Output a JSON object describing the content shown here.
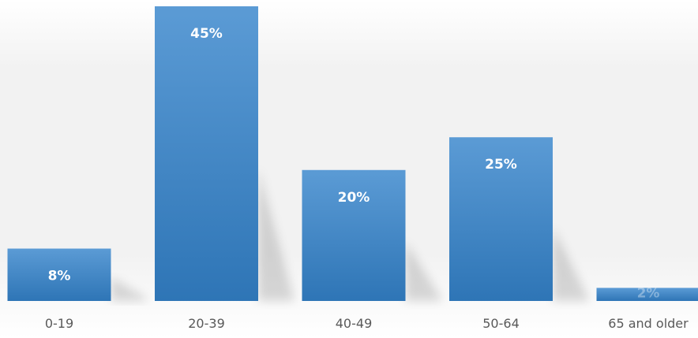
{
  "chart_data": {
    "type": "bar",
    "title": "",
    "xlabel": "",
    "ylabel": "",
    "categories": [
      "0-19",
      "20-39",
      "40-49",
      "50-64",
      "65 and older"
    ],
    "values": [
      8,
      45,
      20,
      25,
      2
    ],
    "data_labels": [
      "8%",
      "45%",
      "20%",
      "25%",
      "2%"
    ],
    "ylim": [
      0,
      45
    ],
    "grid": false,
    "legend": "none",
    "colors": {
      "bar_top": "#5b9bd5",
      "bar_bottom": "#2e75b6",
      "label_text": "#ffffff",
      "axis_text": "#595959",
      "background_top": "#f2f2f2",
      "background_bottom": "#ffffff"
    }
  }
}
